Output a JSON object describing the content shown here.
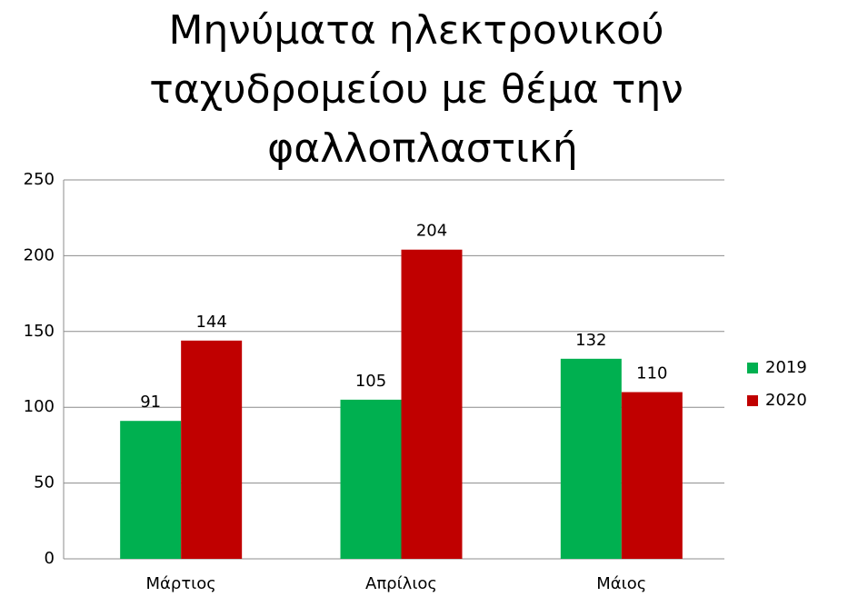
{
  "chart_data": {
    "type": "bar",
    "title": "Μηνύματα ηλεκτρονικού ταχυδρομείου με θέμα την φαλλοπλαστική",
    "categories": [
      "Μάρτιος",
      "Απρίλιος",
      "Μάιος"
    ],
    "series": [
      {
        "name": "2019",
        "color": "#00b050",
        "values": [
          91,
          105,
          132
        ]
      },
      {
        "name": "2020",
        "color": "#c00000",
        "values": [
          144,
          204,
          110
        ]
      }
    ],
    "ylim": [
      0,
      250
    ],
    "yticks": [
      0,
      50,
      100,
      150,
      200,
      250
    ],
    "grid": true,
    "legend": "right"
  }
}
